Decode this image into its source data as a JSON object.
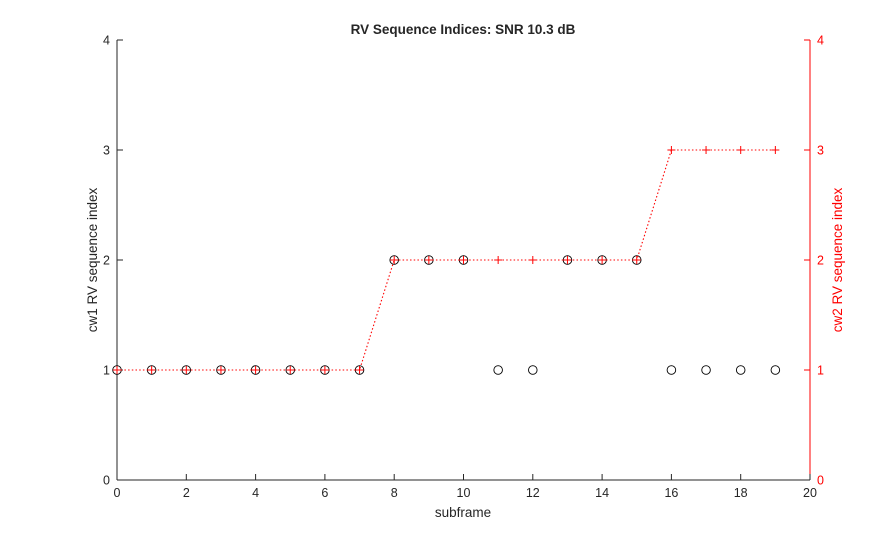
{
  "chart_data": {
    "type": "line",
    "title": "RV Sequence Indices: SNR 10.3 dB",
    "xlabel": "subframe",
    "ylabel_left": "cw1  RV sequence index",
    "ylabel_right": "cw2  RV sequence index",
    "xlim": [
      0,
      20
    ],
    "ylim": [
      0,
      4
    ],
    "xticks": [
      0,
      2,
      4,
      6,
      8,
      10,
      12,
      14,
      16,
      18,
      20
    ],
    "yticks": [
      0,
      1,
      2,
      3,
      4
    ],
    "grid": false,
    "colors": {
      "left_axis": "#262626",
      "right_axis": "#ff0000",
      "cw1": "#000000",
      "cw2": "#ff0000"
    },
    "series": [
      {
        "name": "cw1",
        "axis": "left",
        "marker": "circle",
        "line": "none",
        "x": [
          0,
          1,
          2,
          3,
          4,
          5,
          6,
          7,
          8,
          9,
          10,
          11,
          12,
          13,
          14,
          15,
          16,
          17,
          18,
          19
        ],
        "y": [
          1,
          1,
          1,
          1,
          1,
          1,
          1,
          1,
          2,
          2,
          2,
          1,
          1,
          2,
          2,
          2,
          1,
          1,
          1,
          1
        ]
      },
      {
        "name": "cw2",
        "axis": "right",
        "marker": "plus",
        "line": "dotted",
        "x": [
          0,
          1,
          2,
          3,
          4,
          5,
          6,
          7,
          8,
          9,
          10,
          11,
          12,
          13,
          14,
          15,
          16,
          17,
          18,
          19
        ],
        "y": [
          1,
          1,
          1,
          1,
          1,
          1,
          1,
          1,
          2,
          2,
          2,
          2,
          2,
          2,
          2,
          2,
          3,
          3,
          3,
          3
        ]
      }
    ]
  }
}
